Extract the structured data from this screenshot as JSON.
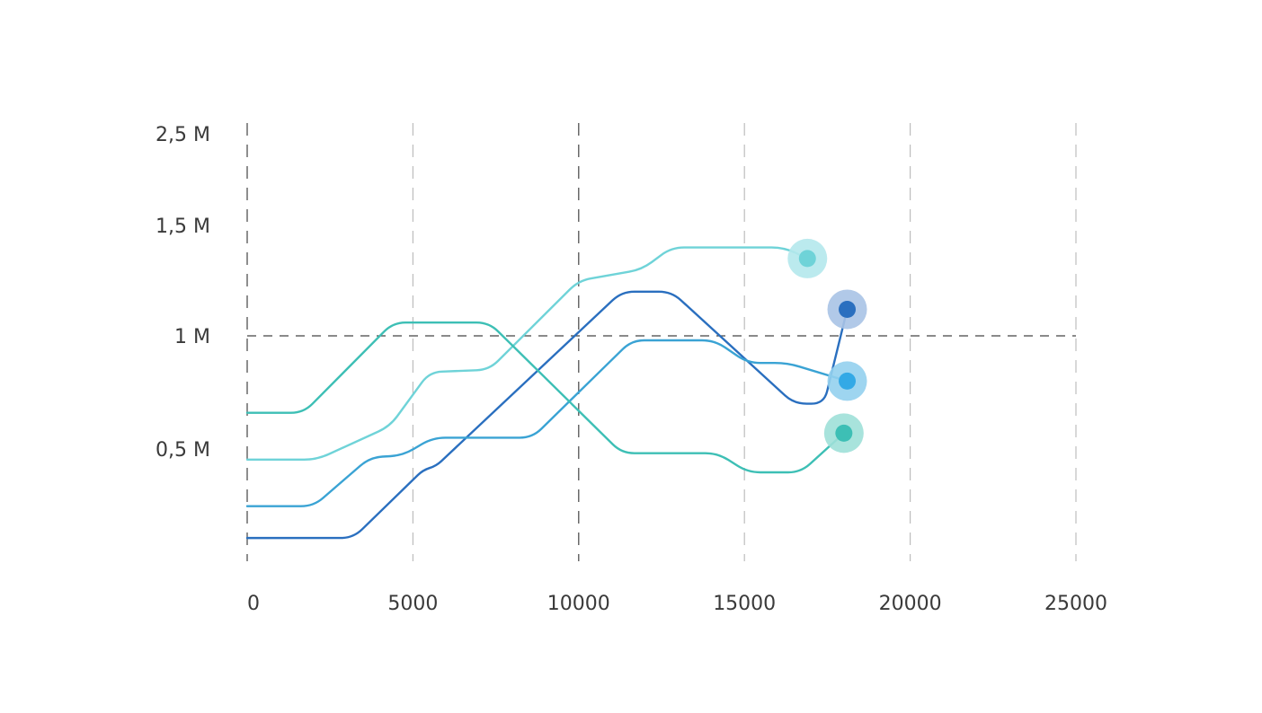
{
  "chart_data": {
    "type": "line",
    "title": "",
    "xlabel": "",
    "ylabel": "",
    "xlim": [
      0,
      25000
    ],
    "x_ticks": [
      0,
      5000,
      10000,
      15000,
      20000,
      25000
    ],
    "x_tick_labels": [
      "0",
      "5000",
      "10000",
      "15000",
      "20000",
      "25000"
    ],
    "y_ticks": [
      0.5,
      1,
      1.5,
      2.5
    ],
    "y_tick_labels": [
      "0,5 M",
      "1 M",
      "1,5 M",
      "2,5 M"
    ],
    "y_tick_style": "dashed-line at 1 M only",
    "grid": "vertical dashed lines at each x tick",
    "legend": "none",
    "series": [
      {
        "color": "#6fd3d8",
        "marker_color": "#6fd3d8",
        "halo_color": "#b4e8ec",
        "points": [
          [
            0,
            0.45
          ],
          [
            2100,
            0.45
          ],
          [
            4300,
            0.6
          ],
          [
            5500,
            0.84
          ],
          [
            7300,
            0.85
          ],
          [
            10000,
            1.25
          ],
          [
            11900,
            1.3
          ],
          [
            12800,
            1.4
          ],
          [
            16200,
            1.4
          ],
          [
            16900,
            1.35
          ]
        ]
      },
      {
        "color": "#2a6fbf",
        "marker_color": "#2a6fbf",
        "halo_color": "#a8c3e6",
        "points": [
          [
            0,
            0.08
          ],
          [
            3200,
            0.08
          ],
          [
            5300,
            0.4
          ],
          [
            5700,
            0.42
          ],
          [
            11300,
            1.2
          ],
          [
            12800,
            1.2
          ],
          [
            16500,
            0.7
          ],
          [
            17400,
            0.7
          ],
          [
            18100,
            1.12
          ]
        ]
      },
      {
        "color": "#3aa3d4",
        "marker_color": "#33a9e6",
        "halo_color": "#93d0ee",
        "points": [
          [
            0,
            0.23
          ],
          [
            2000,
            0.23
          ],
          [
            3700,
            0.46
          ],
          [
            4700,
            0.47
          ],
          [
            5600,
            0.55
          ],
          [
            8600,
            0.55
          ],
          [
            11600,
            0.98
          ],
          [
            14100,
            0.98
          ],
          [
            15100,
            0.88
          ],
          [
            16300,
            0.88
          ],
          [
            18100,
            0.8
          ]
        ]
      },
      {
        "color": "#3dbfb5",
        "marker_color": "#3dbfb5",
        "halo_color": "#9fe0d8",
        "points": [
          [
            0,
            0.66
          ],
          [
            1700,
            0.66
          ],
          [
            4400,
            1.06
          ],
          [
            7300,
            1.06
          ],
          [
            11300,
            0.48
          ],
          [
            14200,
            0.48
          ],
          [
            15100,
            0.39
          ],
          [
            16700,
            0.39
          ],
          [
            18000,
            0.57
          ]
        ]
      }
    ]
  }
}
